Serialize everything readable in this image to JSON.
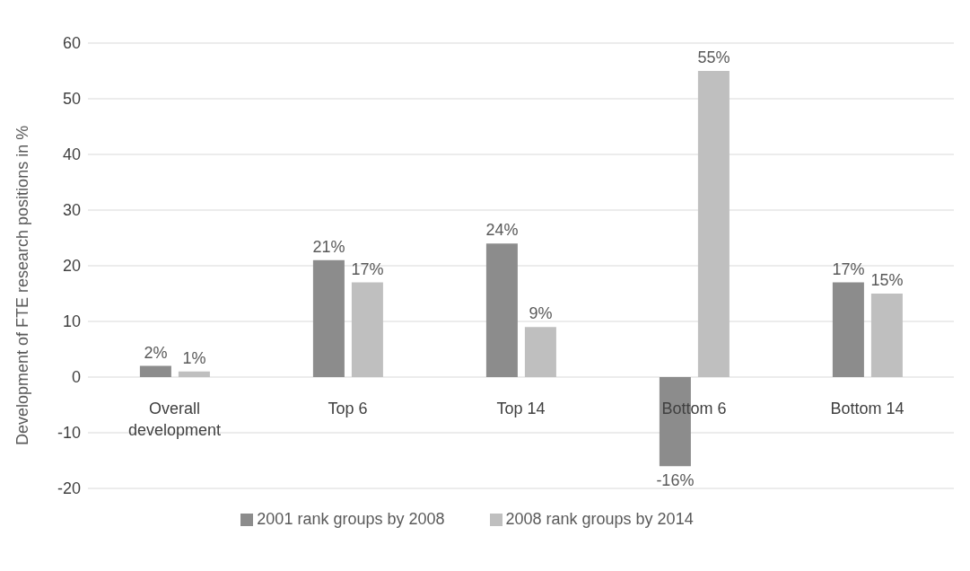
{
  "chart_data": {
    "type": "bar",
    "ylabel": "Development of FTE research positions in %",
    "categories": [
      "Overall development",
      "Top 6",
      "Top 14",
      "Bottom 6",
      "Bottom 14"
    ],
    "series": [
      {
        "name": "2001 rank groups by 2008",
        "color": "#8c8c8c",
        "values": [
          2,
          21,
          24,
          -16,
          17
        ],
        "value_labels": [
          "2%",
          "21%",
          "24%",
          "-16%",
          "17%"
        ]
      },
      {
        "name": "2008 rank groups by 2014",
        "color": "#bfbfbf",
        "values": [
          1,
          17,
          9,
          55,
          15
        ],
        "value_labels": [
          "1%",
          "17%",
          "9%",
          "55%",
          "15%"
        ]
      }
    ],
    "ylim": [
      -20,
      60
    ],
    "yticks": [
      -20,
      -10,
      0,
      10,
      20,
      30,
      40,
      50,
      60
    ],
    "grid": "y",
    "legend": "bottom"
  }
}
